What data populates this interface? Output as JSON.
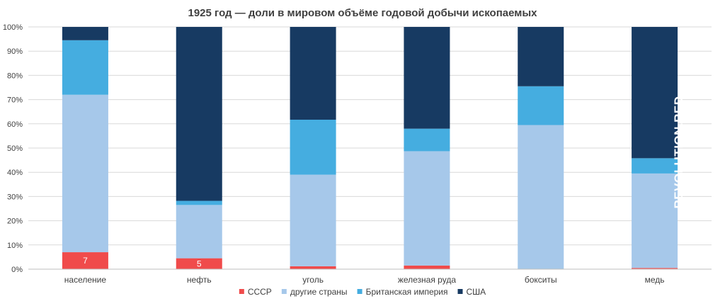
{
  "chart_data": {
    "type": "bar",
    "stacked": true,
    "percent": true,
    "title": "1925 год — доли в мировом объёме годовой добычи ископаемых",
    "categories": [
      "население",
      "нефть",
      "уголь",
      "железная руда",
      "бокситы",
      "медь"
    ],
    "y_ticks": [
      "0%",
      "10%",
      "20%",
      "30%",
      "40%",
      "50%",
      "60%",
      "70%",
      "80%",
      "90%",
      "100%"
    ],
    "ylim": [
      0,
      100
    ],
    "grid": true,
    "legend_position": "bottom",
    "series": [
      {
        "name": "СССР",
        "color": "#f04b4b",
        "values": [
          7,
          4.5,
          1.2,
          1.5,
          0,
          0.5
        ],
        "labels": [
          "7",
          "5",
          "",
          "",
          "",
          ""
        ]
      },
      {
        "name": "другие страны",
        "color": "#a6c8ea",
        "values": [
          65,
          22,
          37.8,
          47.2,
          59.5,
          39
        ],
        "labels": []
      },
      {
        "name": "Британская империя",
        "color": "#45ade0",
        "values": [
          22.5,
          1.7,
          22.7,
          9.3,
          16,
          6.3
        ],
        "labels": []
      },
      {
        "name": "США",
        "color": "#173a62",
        "values": [
          5.5,
          71.8,
          38.3,
          42,
          24.5,
          54.2
        ],
        "labels": []
      }
    ]
  },
  "watermark": "REVOLUTION.RED"
}
